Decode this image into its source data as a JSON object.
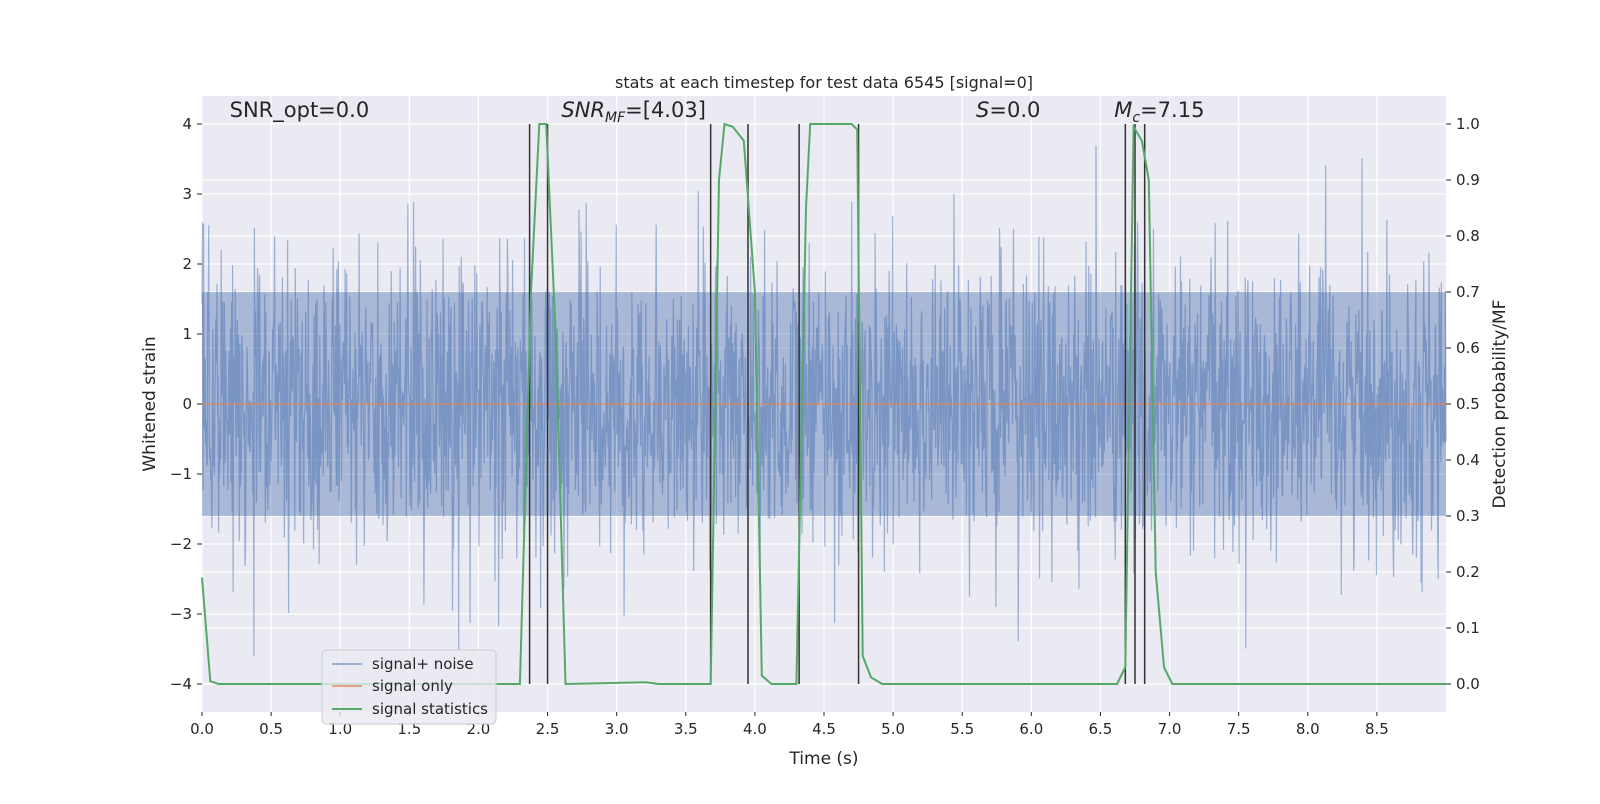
{
  "chart_data": {
    "type": "line",
    "title": "stats at each timestep for test data 6545 [signal=0]",
    "xlabel": "Time (s)",
    "ylabel": "Whitened strain",
    "y2label": "Detection probability/MF",
    "xlim": [
      0,
      9.0
    ],
    "ylim": [
      -4.4,
      4.4
    ],
    "y2lim": [
      -0.05,
      1.05
    ],
    "x_ticks": [
      0.0,
      0.5,
      1.0,
      1.5,
      2.0,
      2.5,
      3.0,
      3.5,
      4.0,
      4.5,
      5.0,
      5.5,
      6.0,
      6.5,
      7.0,
      7.5,
      8.0,
      8.5
    ],
    "x_tick_labels": [
      "0.0",
      "0.5",
      "1.0",
      "1.5",
      "2.0",
      "2.5",
      "3.0",
      "3.5",
      "4.0",
      "4.5",
      "5.0",
      "5.5",
      "6.0",
      "6.5",
      "7.0",
      "7.5",
      "8.0",
      "8.5"
    ],
    "y_ticks": [
      4,
      3,
      2,
      1,
      0,
      -1,
      -2,
      -3,
      -4
    ],
    "y_tick_labels": [
      "4",
      "3",
      "2",
      "1",
      "0",
      "−1",
      "−2",
      "−3",
      "−4"
    ],
    "y2_ticks": [
      1.0,
      0.9,
      0.8,
      0.7,
      0.6,
      0.5,
      0.4,
      0.3,
      0.2,
      0.1,
      0.0
    ],
    "y2_tick_labels": [
      "1.0",
      "0.9",
      "0.8",
      "0.7",
      "0.6",
      "0.5",
      "0.4",
      "0.3",
      "0.2",
      "0.1",
      "0.0"
    ],
    "grid": true,
    "legend_position": "lower-left",
    "series": [
      {
        "name": "signal+ noise",
        "color": "#4c72b0",
        "axis": "left",
        "kind": "noise",
        "typical_envelope": [
          -1.6,
          1.6
        ],
        "peak_max": 4.0,
        "peak_min": -3.75,
        "duration": 9.0
      },
      {
        "name": "signal only",
        "color": "#dd8452",
        "axis": "left",
        "x": [
          0.0,
          9.0
        ],
        "y": [
          0.0,
          0.0
        ]
      },
      {
        "name": "signal statistics",
        "color": "#55a868",
        "axis": "right",
        "x": [
          0.0,
          0.06,
          0.12,
          2.3,
          2.38,
          2.44,
          2.49,
          2.56,
          2.63,
          3.2,
          3.25,
          3.3,
          3.68,
          3.74,
          3.78,
          3.84,
          3.92,
          4.0,
          4.05,
          4.12,
          4.3,
          4.37,
          4.4,
          4.7,
          4.74,
          4.78,
          4.84,
          4.92,
          5.0,
          6.62,
          6.68,
          6.74,
          6.8,
          6.85,
          6.9,
          6.96,
          7.02,
          9.0
        ],
        "y": [
          0.19,
          0.005,
          0.0,
          0.0,
          0.7,
          1.0,
          1.0,
          0.62,
          0.0,
          0.003,
          0.002,
          0.0,
          0.0,
          0.9,
          1.0,
          0.995,
          0.97,
          0.7,
          0.015,
          0.0,
          0.0,
          0.85,
          1.0,
          1.0,
          0.99,
          0.05,
          0.012,
          0.0,
          0.0,
          0.0,
          0.03,
          0.995,
          0.97,
          0.9,
          0.2,
          0.03,
          0.0,
          0.0
        ]
      }
    ],
    "detection_lines_x": [
      2.37,
      2.5,
      3.68,
      3.95,
      4.32,
      4.75,
      6.68,
      6.75,
      6.82
    ],
    "detection_line_color": "#333333",
    "annotations": [
      {
        "text": "SNR_opt=0.0",
        "x": 0.2,
        "y": 4.1
      },
      {
        "text": "SNR_MF=[4.03]",
        "x": 2.6,
        "y": 4.1
      },
      {
        "text": "S=0.0",
        "x": 5.6,
        "y": 4.1
      },
      {
        "text": "M_c=7.15",
        "x": 6.6,
        "y": 4.1
      }
    ],
    "colors": {
      "axes_background": "#eaeaf2",
      "grid": "#ffffff",
      "text": "#262626"
    }
  }
}
